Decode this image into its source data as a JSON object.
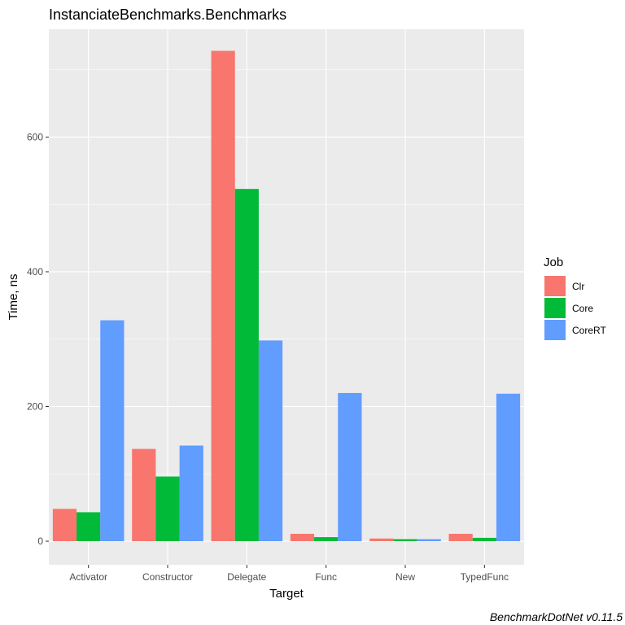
{
  "chart_data": {
    "type": "bar",
    "title": "InstanciateBenchmarks.Benchmarks",
    "xlabel": "Target",
    "ylabel": "Time, ns",
    "categories": [
      "Activator",
      "Constructor",
      "Delegate",
      "Func",
      "New",
      "TypedFunc"
    ],
    "series": [
      {
        "name": "Clr",
        "color": "#F8766D",
        "values": [
          48,
          137,
          728,
          11,
          4,
          11
        ]
      },
      {
        "name": "Core",
        "color": "#00BA38",
        "values": [
          43,
          96,
          523,
          6,
          3,
          5
        ]
      },
      {
        "name": "CoreRT",
        "color": "#619CFF",
        "values": [
          328,
          142,
          298,
          220,
          3,
          219
        ]
      }
    ],
    "ylim": [
      -35,
      760
    ],
    "yticks": [
      0,
      200,
      400,
      600
    ],
    "legend": {
      "title": "Job",
      "position": "right"
    },
    "grid": true,
    "caption": "BenchmarkDotNet v0.11.5"
  }
}
